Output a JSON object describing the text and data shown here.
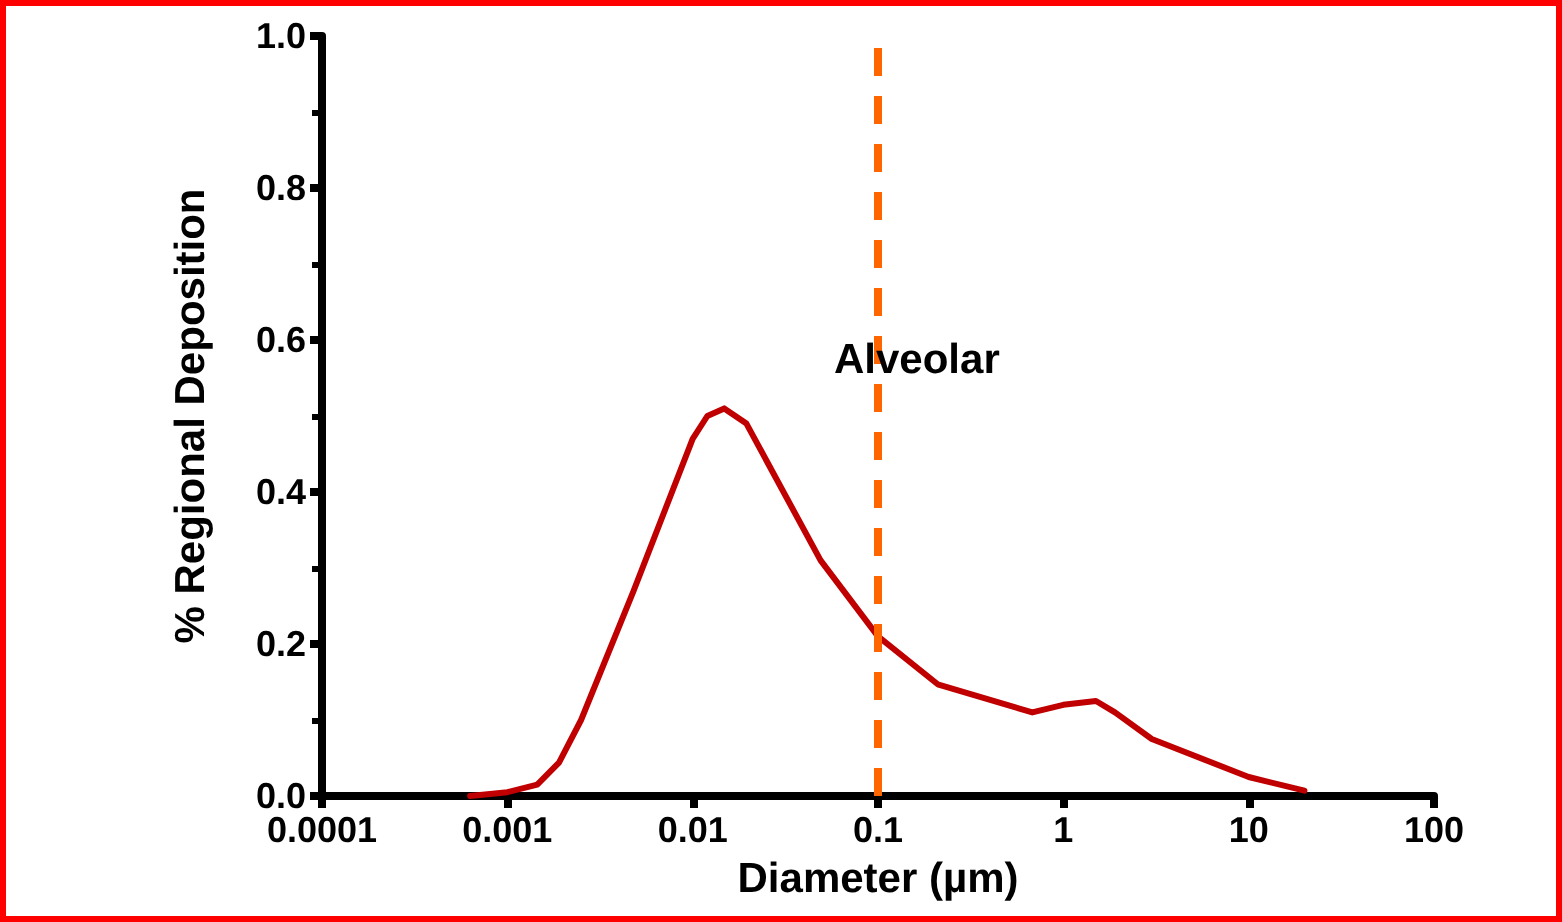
{
  "chart_data": {
    "type": "line",
    "xlabel": "Diameter (µm)",
    "ylabel": "% Regional Deposition",
    "log": "x",
    "x": [
      0.00063,
      0.001,
      0.00145,
      0.0019,
      0.0025,
      0.0048,
      0.01,
      0.012,
      0.0148,
      0.0195,
      0.049,
      0.1,
      0.21,
      0.68,
      1.0,
      1.5,
      1.9,
      3.0,
      10,
      20
    ],
    "series": [
      {
        "color": "#c00000",
        "values": [
          0.0,
          0.005,
          0.015,
          0.044,
          0.1,
          0.27,
          0.47,
          0.5,
          0.51,
          0.49,
          0.31,
          0.21,
          0.147,
          0.11,
          0.12,
          0.125,
          0.11,
          0.075,
          0.025,
          0.007
        ]
      }
    ],
    "xlim": [
      0.0001,
      100
    ],
    "xticks": [
      0.0001,
      0.001,
      0.01,
      0.1,
      1,
      10,
      100
    ],
    "ylim": [
      0,
      1
    ],
    "yticks": [
      {
        "value": 0,
        "label": "0.0"
      },
      {
        "value": 0.2,
        "label": "0.2"
      },
      {
        "value": 0.4,
        "label": "0.4"
      },
      {
        "value": 0.6,
        "label": "0.6"
      },
      {
        "value": 0.8,
        "label": "0.8"
      },
      {
        "value": 1,
        "label": "1.0"
      }
    ],
    "ref_lines": [
      {
        "axis": "x",
        "value": 0.1,
        "label": "Alveolar",
        "color": "#ff6600",
        "line_style": "dashed"
      }
    ],
    "grid": false,
    "marker": "none",
    "line_style": "solid"
  }
}
